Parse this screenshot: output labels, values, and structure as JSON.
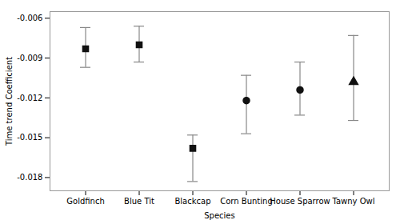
{
  "chart_data": {
    "type": "errorbar",
    "xlabel": "Species",
    "ylabel": "Time trend Coefficient",
    "categories": [
      "Goldfinch",
      "Blue Tit",
      "Blackcap",
      "Corn Bunting",
      "House Sparrow",
      "Tawny Owl"
    ],
    "values": [
      -0.0083,
      -0.008,
      -0.0158,
      -0.0122,
      -0.0114,
      -0.0108
    ],
    "ci_lower": [
      -0.0097,
      -0.0093,
      -0.0183,
      -0.0147,
      -0.0133,
      -0.0137
    ],
    "ci_upper": [
      -0.0067,
      -0.0066,
      -0.0148,
      -0.0103,
      -0.0093,
      -0.0073
    ],
    "marker": [
      "square",
      "square",
      "square",
      "circle",
      "circle",
      "triangle"
    ],
    "color": "#111111",
    "ylim": [
      -0.019,
      -0.0055
    ],
    "yticks": [
      -0.006,
      -0.009,
      -0.012,
      -0.015,
      -0.018
    ],
    "grid": false
  }
}
